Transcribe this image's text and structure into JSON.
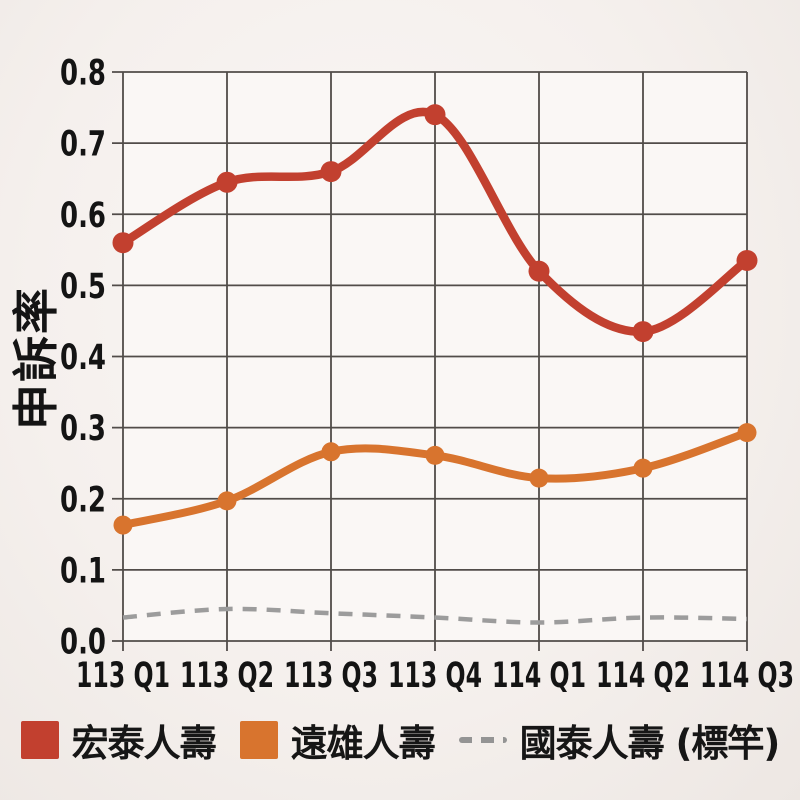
{
  "chart_data": {
    "type": "line",
    "title": "",
    "ylabel": "申訴率",
    "xlabel": "",
    "ylim": [
      0,
      0.8
    ],
    "ytick_labels": [
      "0.0",
      "0.1",
      "0.2",
      "0.3",
      "0.4",
      "0.5",
      "0.6",
      "0.7",
      "0.8"
    ],
    "categories": [
      "113 Q1",
      "113 Q2",
      "113 Q3",
      "113 Q4",
      "114 Q1",
      "114 Q2",
      "114 Q3"
    ],
    "grid": true,
    "legend_position": "bottom",
    "axis_text_color": "#141414",
    "grid_color": "#514c49",
    "series": [
      {
        "name": "宏泰人壽",
        "color": "#c2402f",
        "line_style": "solid",
        "markers": true,
        "values": [
          0.56,
          0.645,
          0.66,
          0.74,
          0.52,
          0.435,
          0.535
        ]
      },
      {
        "name": "遠雄人壽",
        "color": "#d8742e",
        "line_style": "solid",
        "markers": true,
        "values": [
          0.163,
          0.197,
          0.266,
          0.261,
          0.229,
          0.243,
          0.293
        ]
      },
      {
        "name": "國泰人壽 (標竿)",
        "color": "#9c9c9c",
        "line_style": "dashed",
        "markers": false,
        "values": [
          0.033,
          0.045,
          0.039,
          0.033,
          0.026,
          0.033,
          0.031
        ]
      }
    ]
  }
}
